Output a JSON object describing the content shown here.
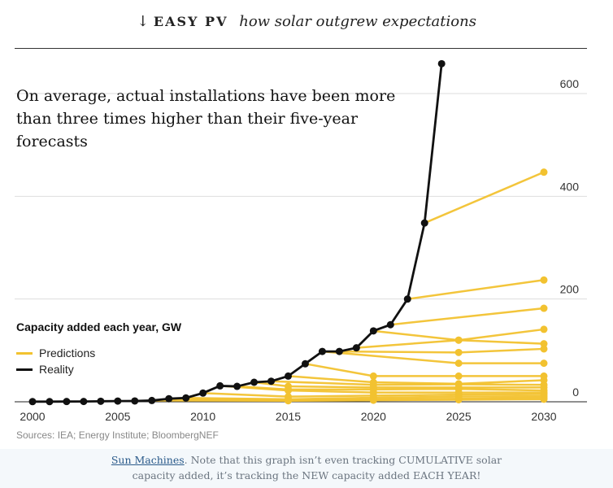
{
  "header": {
    "arrow": "↓",
    "brand": "EASY PV",
    "subtitle": "how solar outgrew expectations"
  },
  "headline": "On average, actual installations have been more than three times higher than their five-year forecasts",
  "legend": {
    "title": "Capacity added each year, GW",
    "items": [
      {
        "label": "Predictions",
        "color": "#f2c230"
      },
      {
        "label": "Reality",
        "color": "#111111"
      }
    ]
  },
  "source": "Sources: IEA; Energy Institute; BloombergNEF",
  "caption": {
    "link_text": "Sun Machines",
    "text": ". Note that this graph isn’t even tracking CUMULATIVE solar capacity added, it’s tracking the NEW capacity added EACH YEAR!"
  },
  "chart_data": {
    "type": "line",
    "title": "On average, actual installations have been more than three times higher than their five-year forecasts",
    "ylabel": "Capacity added each year, GW",
    "xlim": [
      2000,
      2030
    ],
    "ylim": [
      0,
      650
    ],
    "x_ticks": [
      2000,
      2005,
      2010,
      2015,
      2020,
      2025,
      2030
    ],
    "y_ticks": [
      0,
      200,
      400,
      600
    ],
    "y_axis_position": "right",
    "grid": "horizontal",
    "legend_position": "left",
    "series": [
      {
        "name": "Reality",
        "color": "#111111",
        "points": [
          [
            2000,
            0.3
          ],
          [
            2001,
            0.3
          ],
          [
            2002,
            0.5
          ],
          [
            2003,
            0.6
          ],
          [
            2004,
            1
          ],
          [
            2005,
            1.4
          ],
          [
            2006,
            1.6
          ],
          [
            2007,
            2.5
          ],
          [
            2008,
            6
          ],
          [
            2009,
            7.5
          ],
          [
            2010,
            17
          ],
          [
            2011,
            31
          ],
          [
            2012,
            30
          ],
          [
            2013,
            38
          ],
          [
            2014,
            40
          ],
          [
            2015,
            50
          ],
          [
            2016,
            74
          ],
          [
            2017,
            98
          ],
          [
            2018,
            98
          ],
          [
            2019,
            105
          ],
          [
            2020,
            138
          ],
          [
            2021,
            150
          ],
          [
            2022,
            200
          ],
          [
            2023,
            348
          ],
          [
            2024,
            658
          ]
        ]
      }
    ],
    "predictions": [
      {
        "points": [
          [
            2023,
            348
          ],
          [
            2030,
            447
          ]
        ]
      },
      {
        "points": [
          [
            2022,
            200
          ],
          [
            2030,
            237
          ]
        ]
      },
      {
        "points": [
          [
            2021,
            150
          ],
          [
            2030,
            182
          ]
        ]
      },
      {
        "points": [
          [
            2020,
            138
          ],
          [
            2025,
            120
          ],
          [
            2030,
            141
          ]
        ]
      },
      {
        "points": [
          [
            2019,
            105
          ],
          [
            2025,
            120
          ],
          [
            2030,
            113
          ]
        ]
      },
      {
        "points": [
          [
            2018,
            98
          ],
          [
            2025,
            96
          ],
          [
            2030,
            103
          ]
        ]
      },
      {
        "points": [
          [
            2017,
            98
          ],
          [
            2025,
            75
          ],
          [
            2030,
            75
          ]
        ]
      },
      {
        "points": [
          [
            2016,
            74
          ],
          [
            2020,
            50
          ],
          [
            2025,
            50
          ],
          [
            2030,
            50
          ]
        ]
      },
      {
        "points": [
          [
            2015,
            50
          ],
          [
            2020,
            38
          ],
          [
            2025,
            35
          ],
          [
            2030,
            42
          ]
        ]
      },
      {
        "points": [
          [
            2014,
            40
          ],
          [
            2020,
            33
          ],
          [
            2025,
            34
          ],
          [
            2030,
            33
          ]
        ]
      },
      {
        "points": [
          [
            2013,
            38
          ],
          [
            2015,
            30
          ],
          [
            2020,
            28
          ],
          [
            2025,
            28
          ],
          [
            2030,
            28
          ]
        ]
      },
      {
        "points": [
          [
            2012,
            30
          ],
          [
            2015,
            24
          ],
          [
            2020,
            24
          ],
          [
            2025,
            25
          ],
          [
            2030,
            22
          ]
        ]
      },
      {
        "points": [
          [
            2011,
            31
          ],
          [
            2015,
            22
          ],
          [
            2020,
            18
          ],
          [
            2025,
            18
          ],
          [
            2030,
            18
          ]
        ]
      },
      {
        "points": [
          [
            2010,
            17
          ],
          [
            2015,
            10
          ],
          [
            2020,
            12
          ],
          [
            2025,
            14
          ],
          [
            2030,
            15
          ]
        ]
      },
      {
        "points": [
          [
            2009,
            7.5
          ],
          [
            2015,
            5
          ],
          [
            2020,
            8
          ],
          [
            2025,
            10
          ],
          [
            2030,
            11
          ]
        ]
      },
      {
        "points": [
          [
            2008,
            6
          ],
          [
            2015,
            3
          ],
          [
            2020,
            5
          ],
          [
            2025,
            6
          ],
          [
            2030,
            8
          ]
        ]
      },
      {
        "points": [
          [
            2007,
            2.5
          ],
          [
            2015,
            2
          ],
          [
            2020,
            3
          ],
          [
            2025,
            4
          ],
          [
            2030,
            5
          ]
        ]
      }
    ]
  }
}
